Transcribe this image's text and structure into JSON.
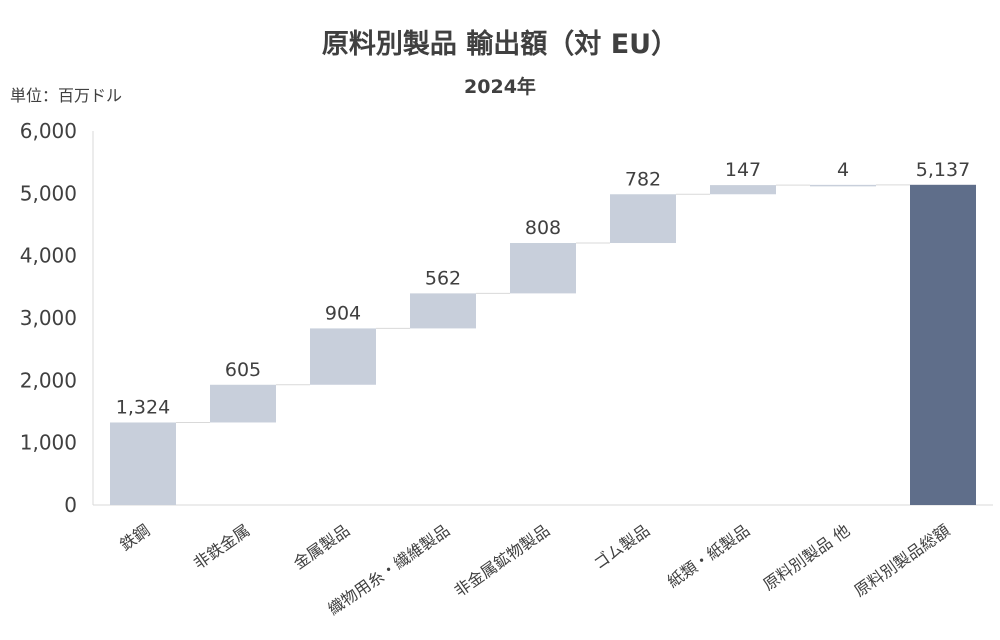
{
  "chart_data": {
    "type": "bar",
    "subtype": "waterfall",
    "title": "原料別製品 輸出額（対 EU）",
    "subtitle": "2024年",
    "unit_label": "単位：百万ドル",
    "categories": [
      "鉄鋼",
      "非鉄金属",
      "金属製品",
      "織物用糸・繊維製品",
      "非金属鉱物製品",
      "ゴム製品",
      "紙類・紙製品",
      "原料別製品 他",
      "原料別製品総額"
    ],
    "values": [
      1324,
      605,
      904,
      562,
      808,
      782,
      147,
      4,
      5137
    ],
    "value_labels": [
      "1,324",
      "605",
      "904",
      "562",
      "808",
      "782",
      "147",
      "4",
      "5,137"
    ],
    "is_total": [
      false,
      false,
      false,
      false,
      false,
      false,
      false,
      false,
      true
    ],
    "ylim": [
      0,
      6000
    ],
    "yticks": [
      0,
      1000,
      2000,
      3000,
      4000,
      5000,
      6000
    ],
    "ytick_labels": [
      "0",
      "1,000",
      "2,000",
      "3,000",
      "4,000",
      "5,000",
      "6,000"
    ],
    "grid": false,
    "legend": "none",
    "colors": {
      "increment": "#C8CFDB",
      "total": "#5F6E8A",
      "connector": "#D9D9D9",
      "axis": "#D9D9D9"
    }
  }
}
